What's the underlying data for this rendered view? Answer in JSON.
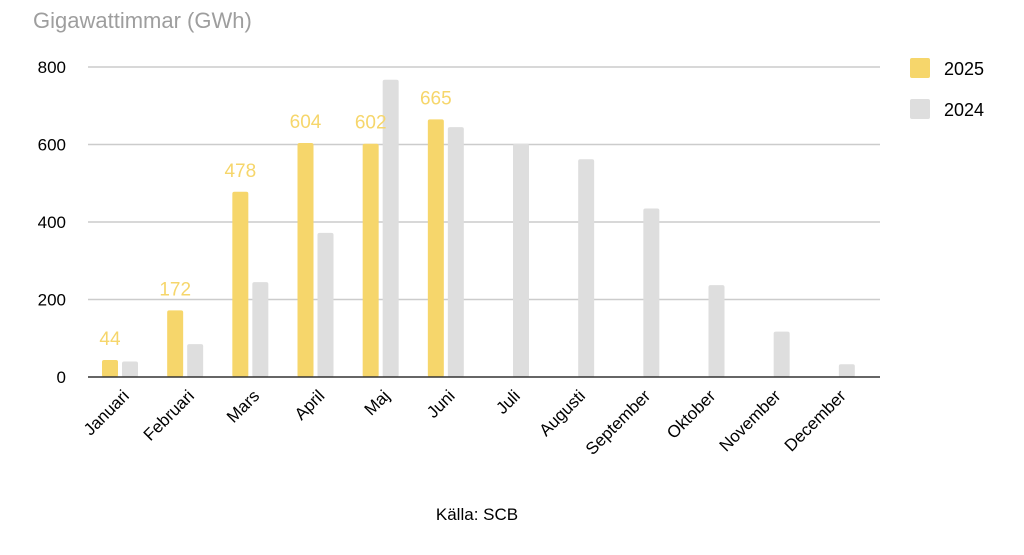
{
  "chart_data": {
    "type": "bar",
    "unit_label": "Gigawattimmar (GWh)",
    "source": "Källa: SCB",
    "categories": [
      "Januari",
      "Februari",
      "Mars",
      "April",
      "Maj",
      "Juni",
      "Juli",
      "Augusti",
      "September",
      "Oktober",
      "November",
      "December"
    ],
    "series": [
      {
        "name": "2025",
        "color": "#f6d66b",
        "values": [
          44,
          172,
          478,
          604,
          602,
          665,
          null,
          null,
          null,
          null,
          null,
          null
        ],
        "data_labels": true
      },
      {
        "name": "2024",
        "color": "#dedede",
        "values": [
          40,
          85,
          245,
          372,
          767,
          645,
          602,
          562,
          435,
          237,
          117,
          33
        ],
        "data_labels": false
      }
    ],
    "ylim": [
      0,
      800
    ],
    "yticks": [
      0,
      200,
      400,
      600,
      800
    ],
    "grid": true,
    "legend_position": "right",
    "data_label_color": "#f6d66b",
    "axis_color": "#333333",
    "grid_color": "#cccccc",
    "unit_label_color": "#9e9e9e"
  }
}
